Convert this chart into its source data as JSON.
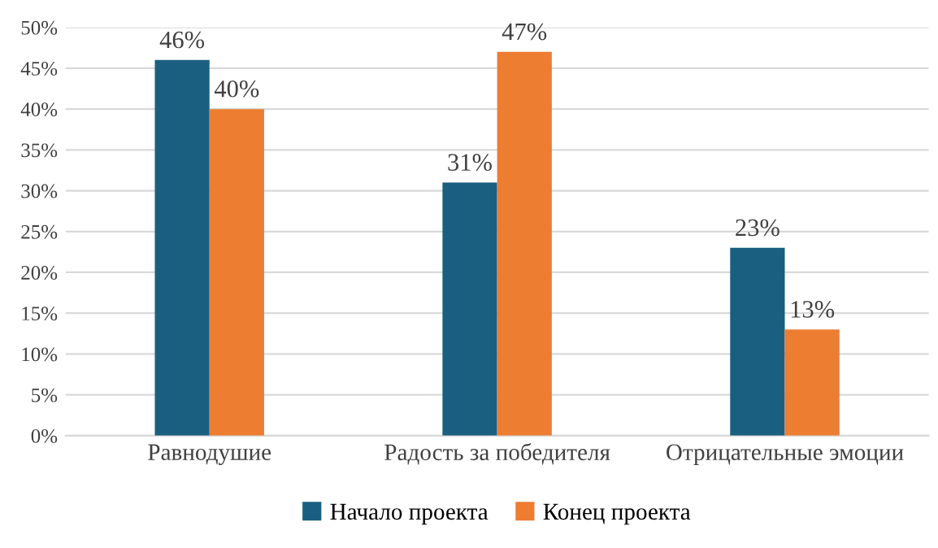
{
  "chart_data": {
    "type": "bar",
    "categories": [
      "Равнодушие",
      "Радость за победителя",
      "Отрицательные эмоции"
    ],
    "series": [
      {
        "name": "Начало проекта",
        "color": "#1a5f80",
        "values": [
          46,
          31,
          23
        ],
        "value_labels": [
          "46%",
          "31%",
          "23%"
        ]
      },
      {
        "name": "Конец проекта",
        "color": "#ed7d31",
        "values": [
          40,
          47,
          13
        ],
        "value_labels": [
          "40%",
          "47%",
          "13%"
        ]
      }
    ],
    "ylim": [
      0,
      50
    ],
    "yticks": [
      {
        "value": 0,
        "label": "0%"
      },
      {
        "value": 5,
        "label": "5%"
      },
      {
        "value": 10,
        "label": "10%"
      },
      {
        "value": 15,
        "label": "15%"
      },
      {
        "value": 20,
        "label": "20%"
      },
      {
        "value": 25,
        "label": "25%"
      },
      {
        "value": 30,
        "label": "30%"
      },
      {
        "value": 35,
        "label": "35%"
      },
      {
        "value": 40,
        "label": "40%"
      },
      {
        "value": 45,
        "label": "45%"
      },
      {
        "value": 50,
        "label": "50%"
      }
    ],
    "grid": "y",
    "legend": "bottom"
  }
}
